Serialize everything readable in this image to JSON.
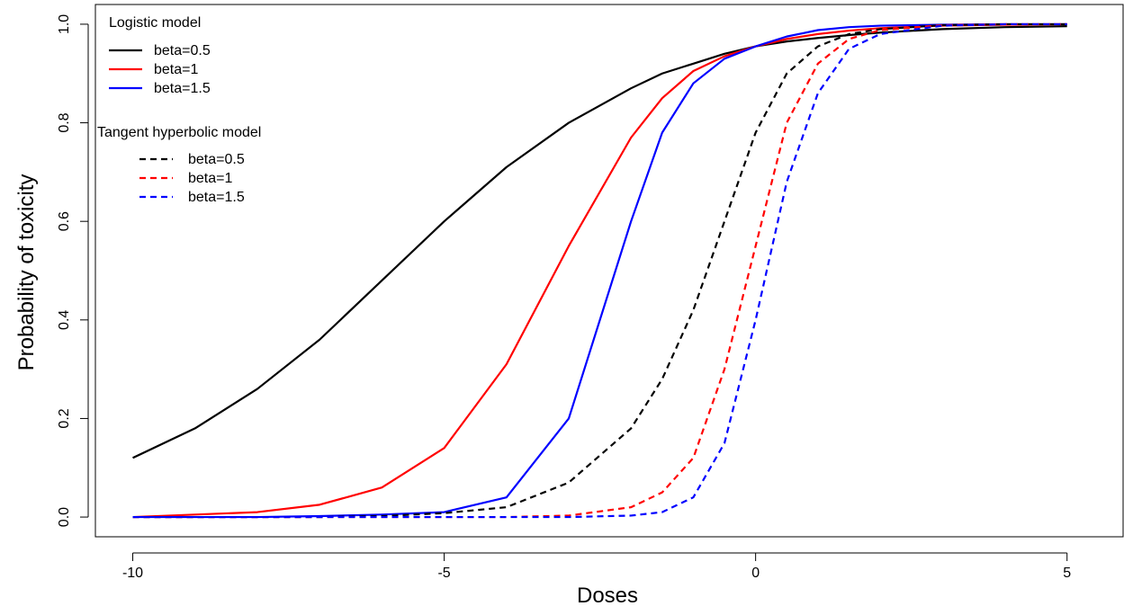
{
  "chart_data": {
    "type": "line",
    "xlabel": "Doses",
    "ylabel": "Probability of toxicity",
    "xlim": [
      -10.6,
      5.9
    ],
    "ylim": [
      -0.04,
      1.04
    ],
    "x_ticks": [
      -10,
      -5,
      0,
      5
    ],
    "x_tick_labels": [
      "-10",
      "-5",
      "0",
      "5"
    ],
    "y_ticks": [
      0.0,
      0.2,
      0.4,
      0.6,
      0.8,
      1.0
    ],
    "y_tick_labels": [
      "0.0",
      "0.2",
      "0.4",
      "0.6",
      "0.8",
      "1.0"
    ],
    "grid": false,
    "legend_position": "top-left",
    "legend_groups": [
      {
        "title": "Logistic model",
        "entries": [
          {
            "label": "beta=0.5",
            "color": "#000000",
            "dash": "solid"
          },
          {
            "label": "beta=1",
            "color": "#ff0000",
            "dash": "solid"
          },
          {
            "label": "beta=1.5",
            "color": "#0000ff",
            "dash": "solid"
          }
        ]
      },
      {
        "title": "Tangent hyperbolic model",
        "entries": [
          {
            "label": "beta=0.5",
            "color": "#000000",
            "dash": "dashed"
          },
          {
            "label": "beta=1",
            "color": "#ff0000",
            "dash": "dashed"
          },
          {
            "label": "beta=1.5",
            "color": "#0000ff",
            "dash": "dashed"
          }
        ]
      }
    ],
    "x": [
      -10,
      -9,
      -8,
      -7,
      -6,
      -5,
      -4,
      -3,
      -2,
      -1.5,
      -1,
      -0.5,
      0,
      0.5,
      1,
      1.5,
      2,
      3,
      4,
      5
    ],
    "series": [
      {
        "name": "Logistic model, beta=0.5",
        "color": "#000000",
        "dash": "solid",
        "values": [
          0.12,
          0.18,
          0.26,
          0.36,
          0.48,
          0.6,
          0.71,
          0.8,
          0.87,
          0.9,
          0.92,
          0.94,
          0.955,
          0.965,
          0.972,
          0.978,
          0.983,
          0.99,
          0.994,
          0.996
        ]
      },
      {
        "name": "Logistic model, beta=1",
        "color": "#ff0000",
        "dash": "solid",
        "values": [
          0.0,
          0.005,
          0.01,
          0.025,
          0.06,
          0.14,
          0.31,
          0.55,
          0.77,
          0.85,
          0.905,
          0.935,
          0.955,
          0.97,
          0.98,
          0.987,
          0.992,
          0.997,
          0.999,
          1.0
        ]
      },
      {
        "name": "Logistic model, beta=1.5",
        "color": "#0000ff",
        "dash": "solid",
        "values": [
          0.0,
          0.0,
          0.0,
          0.002,
          0.005,
          0.01,
          0.04,
          0.2,
          0.6,
          0.78,
          0.88,
          0.93,
          0.955,
          0.975,
          0.988,
          0.994,
          0.997,
          0.999,
          1.0,
          1.0
        ]
      },
      {
        "name": "Tangent hyperbolic model, beta=0.5",
        "color": "#000000",
        "dash": "dashed",
        "values": [
          0.0,
          0.0,
          0.0,
          0.0,
          0.002,
          0.008,
          0.02,
          0.07,
          0.18,
          0.28,
          0.42,
          0.6,
          0.78,
          0.9,
          0.955,
          0.98,
          0.99,
          0.998,
          1.0,
          1.0
        ]
      },
      {
        "name": "Tangent hyperbolic model, beta=1",
        "color": "#ff0000",
        "dash": "dashed",
        "values": [
          0.0,
          0.0,
          0.0,
          0.0,
          0.0,
          0.0,
          0.0,
          0.003,
          0.02,
          0.05,
          0.12,
          0.3,
          0.55,
          0.8,
          0.92,
          0.97,
          0.988,
          0.998,
          1.0,
          1.0
        ]
      },
      {
        "name": "Tangent hyperbolic model, beta=1.5",
        "color": "#0000ff",
        "dash": "dashed",
        "values": [
          0.0,
          0.0,
          0.0,
          0.0,
          0.0,
          0.0,
          0.0,
          0.0,
          0.003,
          0.01,
          0.04,
          0.15,
          0.4,
          0.68,
          0.86,
          0.95,
          0.98,
          0.997,
          1.0,
          1.0
        ]
      }
    ]
  }
}
